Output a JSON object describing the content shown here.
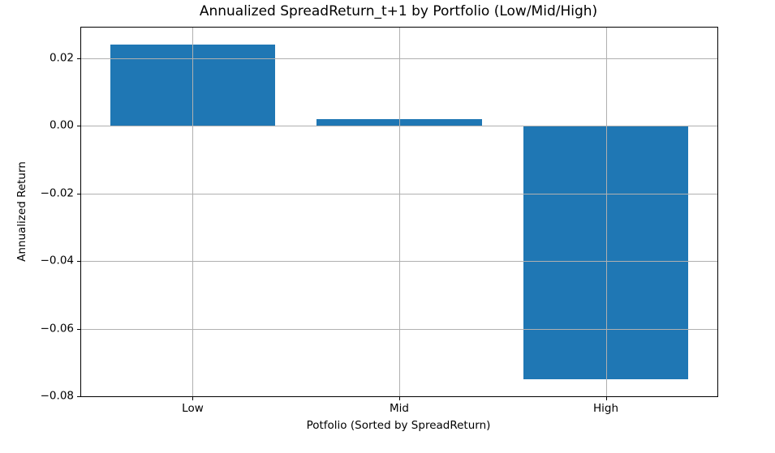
{
  "chart_data": {
    "type": "bar",
    "title": "Annualized SpreadReturn_t+1 by Portfolio (Low/Mid/High)",
    "xlabel": "Potfolio (Sorted by SpreadReturn)",
    "ylabel": "Annualized Return",
    "categories": [
      "Low",
      "Mid",
      "High"
    ],
    "values": [
      0.024,
      0.002,
      -0.075
    ],
    "ylim": [
      -0.08,
      0.029
    ],
    "xlim": [
      -0.54,
      2.54
    ],
    "yticks": [
      0.02,
      0.0,
      -0.02,
      -0.04,
      -0.06,
      -0.08
    ],
    "ytick_labels": [
      "0.02",
      "0.00",
      "−0.02",
      "−0.04",
      "−0.06",
      "−0.08"
    ],
    "bar_width": 0.8,
    "bar_color": "#1f77b4",
    "grid": true,
    "grid_color": "#b0b0b0",
    "background_color": "#ffffff",
    "text_color": "#000000",
    "legend_position": "none"
  }
}
